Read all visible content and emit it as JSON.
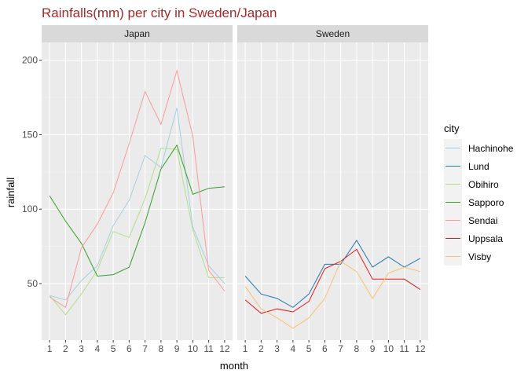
{
  "chart_data": {
    "type": "line",
    "title": "Rainfalls(mm) per city in Sweden/Japan",
    "xlabel": "month",
    "ylabel": "rainfall",
    "legend_title": "city",
    "legend_position": "right",
    "facet_by": "country",
    "facets": [
      "Japan",
      "Sweden"
    ],
    "x": [
      1,
      2,
      3,
      4,
      5,
      6,
      7,
      8,
      9,
      10,
      11,
      12
    ],
    "xlim": [
      0.5,
      12.5
    ],
    "ylim": [
      12,
      212
    ],
    "y_ticks": [
      50,
      100,
      150,
      200
    ],
    "grid": true,
    "series": [
      {
        "name": "Hachinohe",
        "facet": "Japan",
        "color": "#A6CEE3",
        "values": [
          42,
          39,
          52,
          62,
          89,
          106,
          136,
          128,
          168,
          88,
          62,
          50
        ]
      },
      {
        "name": "Lund",
        "facet": "Sweden",
        "color": "#1F78B4",
        "values": [
          55,
          43,
          40,
          34,
          43,
          63,
          63,
          79,
          61,
          68,
          61,
          67
        ]
      },
      {
        "name": "Obihiro",
        "facet": "Japan",
        "color": "#B2DF8A",
        "values": [
          42,
          29,
          43,
          59,
          85,
          81,
          107,
          141,
          140,
          86,
          54,
          54
        ]
      },
      {
        "name": "Sapporo",
        "facet": "Japan",
        "color": "#33A02C",
        "values": [
          109,
          92,
          77,
          55,
          56,
          61,
          91,
          127,
          143,
          110,
          114,
          115
        ]
      },
      {
        "name": "Sendai",
        "facet": "Japan",
        "color": "#FB9A99",
        "values": [
          41,
          34,
          74,
          90,
          111,
          144,
          179,
          157,
          193,
          149,
          59,
          45
        ]
      },
      {
        "name": "Uppsala",
        "facet": "Sweden",
        "color": "#E31A1C",
        "values": [
          39,
          30,
          33,
          31,
          38,
          60,
          65,
          73,
          53,
          53,
          53,
          46
        ]
      },
      {
        "name": "Visby",
        "facet": "Sweden",
        "color": "#FDBF6F",
        "values": [
          48,
          33,
          27,
          20,
          27,
          40,
          65,
          58,
          40,
          57,
          61,
          58
        ]
      }
    ]
  }
}
